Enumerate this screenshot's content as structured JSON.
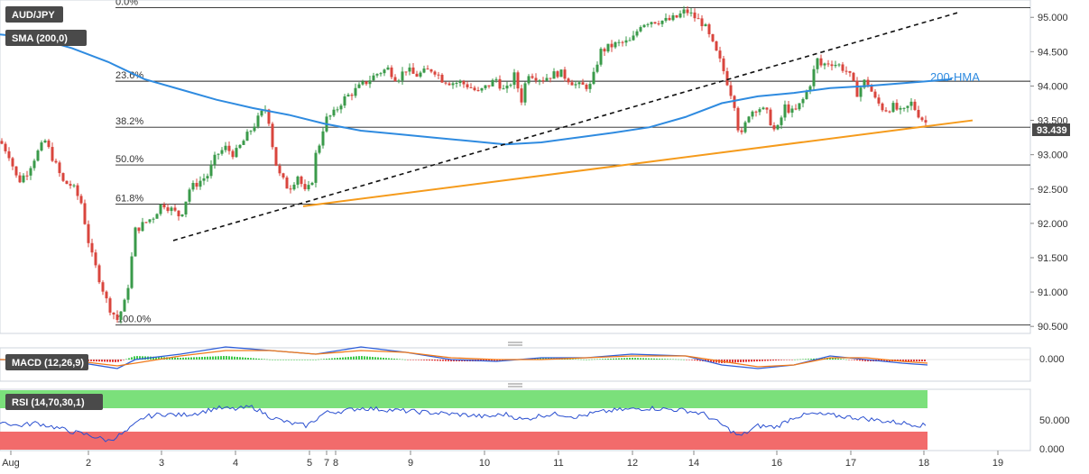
{
  "header": {
    "symbol": "AUD/JPY",
    "indicator": "SMA (200,0)"
  },
  "fib_labels": [
    "0.0%",
    "23.6%",
    "38.2%",
    "50.0%",
    "61.8%",
    "100.0%"
  ],
  "annotation": {
    "hma_label": "200-HMA"
  },
  "price_badge": "93.439",
  "macd": {
    "label": "MACD (12,26,9)",
    "axis_ticks": [
      "0.000"
    ]
  },
  "rsi": {
    "label": "RSI (14,70,30,1)",
    "axis_ticks": [
      "50.000",
      "0.000"
    ]
  },
  "colors": {
    "up": "#3a9a4a",
    "down": "#d9453d",
    "hma": "#2f8be0",
    "support": "#f59b1c",
    "trendline": "#111111",
    "rsi_line": "#2a4fd0",
    "overbought": "#7be07b",
    "oversold": "#f26b6b",
    "badge": "#4a4a4a"
  },
  "chart_data": {
    "type": "candlestick",
    "x_ticks": [
      "Aug",
      "2",
      "3",
      "4",
      "5",
      "7",
      "8",
      "9",
      "10",
      "11",
      "12",
      "14",
      "16",
      "17",
      "18",
      "19"
    ],
    "y_ticks": [
      95.0,
      94.5,
      94.0,
      93.5,
      93.0,
      92.5,
      92.0,
      91.5,
      91.0,
      90.5
    ],
    "y_tick_labels": [
      "95.000",
      "94.500",
      "94.000",
      "93.500",
      "93.000",
      "92.500",
      "92.000",
      "91.500",
      "91.000",
      "90.500"
    ],
    "ylim": [
      90.45,
      95.2
    ],
    "last_price": 93.439,
    "fib_levels": [
      {
        "label": "0.0%",
        "price": 95.14
      },
      {
        "label": "23.6%",
        "price": 94.07
      },
      {
        "label": "38.2%",
        "price": 93.4
      },
      {
        "label": "50.0%",
        "price": 92.85
      },
      {
        "label": "61.8%",
        "price": 92.28
      },
      {
        "label": "100.0%",
        "price": 90.52
      }
    ],
    "price_path": [
      [
        0,
        93.2
      ],
      [
        10,
        93.0
      ],
      [
        20,
        92.6
      ],
      [
        30,
        92.75
      ],
      [
        40,
        93.0
      ],
      [
        50,
        93.2
      ],
      [
        60,
        92.9
      ],
      [
        70,
        92.6
      ],
      [
        80,
        92.55
      ],
      [
        90,
        92.3
      ],
      [
        100,
        91.6
      ],
      [
        110,
        91.2
      ],
      [
        120,
        90.8
      ],
      [
        130,
        90.6
      ],
      [
        140,
        90.9
      ],
      [
        145,
        91.4
      ],
      [
        150,
        91.9
      ],
      [
        160,
        92.0
      ],
      [
        170,
        92.1
      ],
      [
        180,
        92.3
      ],
      [
        190,
        92.2
      ],
      [
        200,
        92.1
      ],
      [
        210,
        92.5
      ],
      [
        220,
        92.6
      ],
      [
        230,
        92.7
      ],
      [
        240,
        93.0
      ],
      [
        250,
        93.1
      ],
      [
        260,
        93.0
      ],
      [
        270,
        93.2
      ],
      [
        280,
        93.4
      ],
      [
        290,
        93.6
      ],
      [
        296,
        93.7
      ],
      [
        300,
        93.3
      ],
      [
        305,
        92.9
      ],
      [
        310,
        92.7
      ],
      [
        320,
        92.5
      ],
      [
        330,
        92.7
      ],
      [
        338,
        92.45
      ],
      [
        345,
        92.55
      ],
      [
        350,
        93.0
      ],
      [
        355,
        93.2
      ],
      [
        360,
        93.5
      ],
      [
        370,
        93.6
      ],
      [
        380,
        93.8
      ],
      [
        390,
        93.9
      ],
      [
        400,
        94.0
      ],
      [
        410,
        94.1
      ],
      [
        420,
        94.2
      ],
      [
        430,
        94.25
      ],
      [
        440,
        94.1
      ],
      [
        450,
        94.25
      ],
      [
        460,
        94.15
      ],
      [
        470,
        94.2
      ],
      [
        480,
        94.25
      ],
      [
        490,
        94.1
      ],
      [
        500,
        94.05
      ],
      [
        510,
        94.05
      ],
      [
        520,
        94.0
      ],
      [
        530,
        93.9
      ],
      [
        540,
        94.0
      ],
      [
        550,
        94.1
      ],
      [
        560,
        93.9
      ],
      [
        570,
        94.15
      ],
      [
        578,
        93.8
      ],
      [
        585,
        94.2
      ],
      [
        600,
        94.1
      ],
      [
        620,
        94.2
      ],
      [
        640,
        94.0
      ],
      [
        655,
        94.0
      ],
      [
        665,
        94.5
      ],
      [
        680,
        94.6
      ],
      [
        700,
        94.65
      ],
      [
        710,
        94.9
      ],
      [
        720,
        94.95
      ],
      [
        740,
        94.95
      ],
      [
        750,
        95.0
      ],
      [
        760,
        95.1
      ],
      [
        770,
        95.0
      ],
      [
        780,
        94.9
      ],
      [
        790,
        94.6
      ],
      [
        800,
        94.3
      ],
      [
        810,
        93.9
      ],
      [
        815,
        93.7
      ],
      [
        820,
        93.2
      ],
      [
        825,
        93.4
      ],
      [
        830,
        93.6
      ],
      [
        840,
        93.7
      ],
      [
        850,
        93.6
      ],
      [
        860,
        93.3
      ],
      [
        870,
        93.7
      ],
      [
        880,
        93.6
      ],
      [
        890,
        93.8
      ],
      [
        900,
        94.1
      ],
      [
        905,
        94.4
      ],
      [
        910,
        94.3
      ],
      [
        920,
        94.35
      ],
      [
        930,
        94.3
      ],
      [
        940,
        94.2
      ],
      [
        950,
        93.9
      ],
      [
        960,
        94.1
      ],
      [
        970,
        93.8
      ],
      [
        980,
        93.65
      ],
      [
        990,
        93.7
      ],
      [
        1000,
        93.6
      ],
      [
        1010,
        93.75
      ],
      [
        1020,
        93.55
      ],
      [
        1028,
        93.44
      ]
    ],
    "indicators": {
      "hma_200": [
        [
          0,
          94.75
        ],
        [
          40,
          94.7
        ],
        [
          80,
          94.55
        ],
        [
          120,
          94.35
        ],
        [
          160,
          94.1
        ],
        [
          200,
          93.95
        ],
        [
          240,
          93.8
        ],
        [
          280,
          93.68
        ],
        [
          320,
          93.58
        ],
        [
          360,
          93.45
        ],
        [
          400,
          93.35
        ],
        [
          440,
          93.3
        ],
        [
          480,
          93.25
        ],
        [
          520,
          93.2
        ],
        [
          560,
          93.15
        ],
        [
          600,
          93.18
        ],
        [
          640,
          93.25
        ],
        [
          680,
          93.32
        ],
        [
          720,
          93.4
        ],
        [
          760,
          93.55
        ],
        [
          800,
          93.75
        ],
        [
          840,
          93.85
        ],
        [
          880,
          93.9
        ],
        [
          920,
          93.97
        ],
        [
          960,
          94.0
        ],
        [
          1000,
          94.04
        ],
        [
          1055,
          94.1
        ]
      ],
      "rising_trendline": {
        "from": [
          192,
          91.75
        ],
        "to": [
          1062,
          95.07
        ]
      },
      "support_line": {
        "from": [
          336,
          92.25
        ],
        "to": [
          1078,
          93.5
        ]
      }
    },
    "macd_series": {
      "macd": [
        [
          0,
          0.0
        ],
        [
          80,
          -0.01
        ],
        [
          130,
          -0.05
        ],
        [
          150,
          0.0
        ],
        [
          200,
          0.03
        ],
        [
          250,
          0.07
        ],
        [
          300,
          0.05
        ],
        [
          350,
          0.03
        ],
        [
          400,
          0.07
        ],
        [
          450,
          0.04
        ],
        [
          500,
          0.0
        ],
        [
          550,
          -0.01
        ],
        [
          600,
          0.01
        ],
        [
          650,
          0.01
        ],
        [
          700,
          0.03
        ],
        [
          760,
          0.02
        ],
        [
          800,
          -0.03
        ],
        [
          840,
          -0.05
        ],
        [
          880,
          -0.03
        ],
        [
          920,
          0.02
        ],
        [
          960,
          0.0
        ],
        [
          1000,
          -0.02
        ],
        [
          1028,
          -0.03
        ]
      ],
      "signal": [
        [
          0,
          0.0
        ],
        [
          80,
          -0.005
        ],
        [
          130,
          -0.035
        ],
        [
          150,
          -0.02
        ],
        [
          200,
          0.02
        ],
        [
          250,
          0.05
        ],
        [
          300,
          0.05
        ],
        [
          350,
          0.03
        ],
        [
          400,
          0.05
        ],
        [
          450,
          0.04
        ],
        [
          500,
          0.01
        ],
        [
          550,
          0.0
        ],
        [
          600,
          0.0
        ],
        [
          650,
          0.01
        ],
        [
          700,
          0.02
        ],
        [
          760,
          0.02
        ],
        [
          800,
          -0.01
        ],
        [
          840,
          -0.04
        ],
        [
          880,
          -0.03
        ],
        [
          920,
          0.01
        ],
        [
          960,
          0.01
        ],
        [
          1000,
          -0.01
        ],
        [
          1028,
          -0.02
        ]
      ]
    },
    "rsi_series": [
      [
        0,
        48
      ],
      [
        20,
        40
      ],
      [
        40,
        45
      ],
      [
        60,
        38
      ],
      [
        80,
        30
      ],
      [
        100,
        24
      ],
      [
        120,
        15
      ],
      [
        140,
        30
      ],
      [
        160,
        55
      ],
      [
        180,
        60
      ],
      [
        200,
        58
      ],
      [
        220,
        62
      ],
      [
        240,
        70
      ],
      [
        260,
        68
      ],
      [
        280,
        72
      ],
      [
        300,
        55
      ],
      [
        320,
        45
      ],
      [
        340,
        40
      ],
      [
        360,
        62
      ],
      [
        380,
        65
      ],
      [
        400,
        70
      ],
      [
        420,
        68
      ],
      [
        440,
        66
      ],
      [
        460,
        64
      ],
      [
        480,
        62
      ],
      [
        500,
        60
      ],
      [
        520,
        58
      ],
      [
        540,
        55
      ],
      [
        560,
        60
      ],
      [
        580,
        50
      ],
      [
        600,
        58
      ],
      [
        620,
        60
      ],
      [
        640,
        55
      ],
      [
        660,
        62
      ],
      [
        680,
        66
      ],
      [
        700,
        68
      ],
      [
        720,
        70
      ],
      [
        740,
        68
      ],
      [
        760,
        66
      ],
      [
        780,
        60
      ],
      [
        800,
        42
      ],
      [
        820,
        22
      ],
      [
        840,
        40
      ],
      [
        860,
        38
      ],
      [
        880,
        55
      ],
      [
        900,
        60
      ],
      [
        920,
        58
      ],
      [
        940,
        55
      ],
      [
        960,
        52
      ],
      [
        980,
        48
      ],
      [
        1000,
        45
      ],
      [
        1028,
        40
      ]
    ],
    "rsi_levels": {
      "overbought": 70,
      "oversold": 30
    }
  }
}
